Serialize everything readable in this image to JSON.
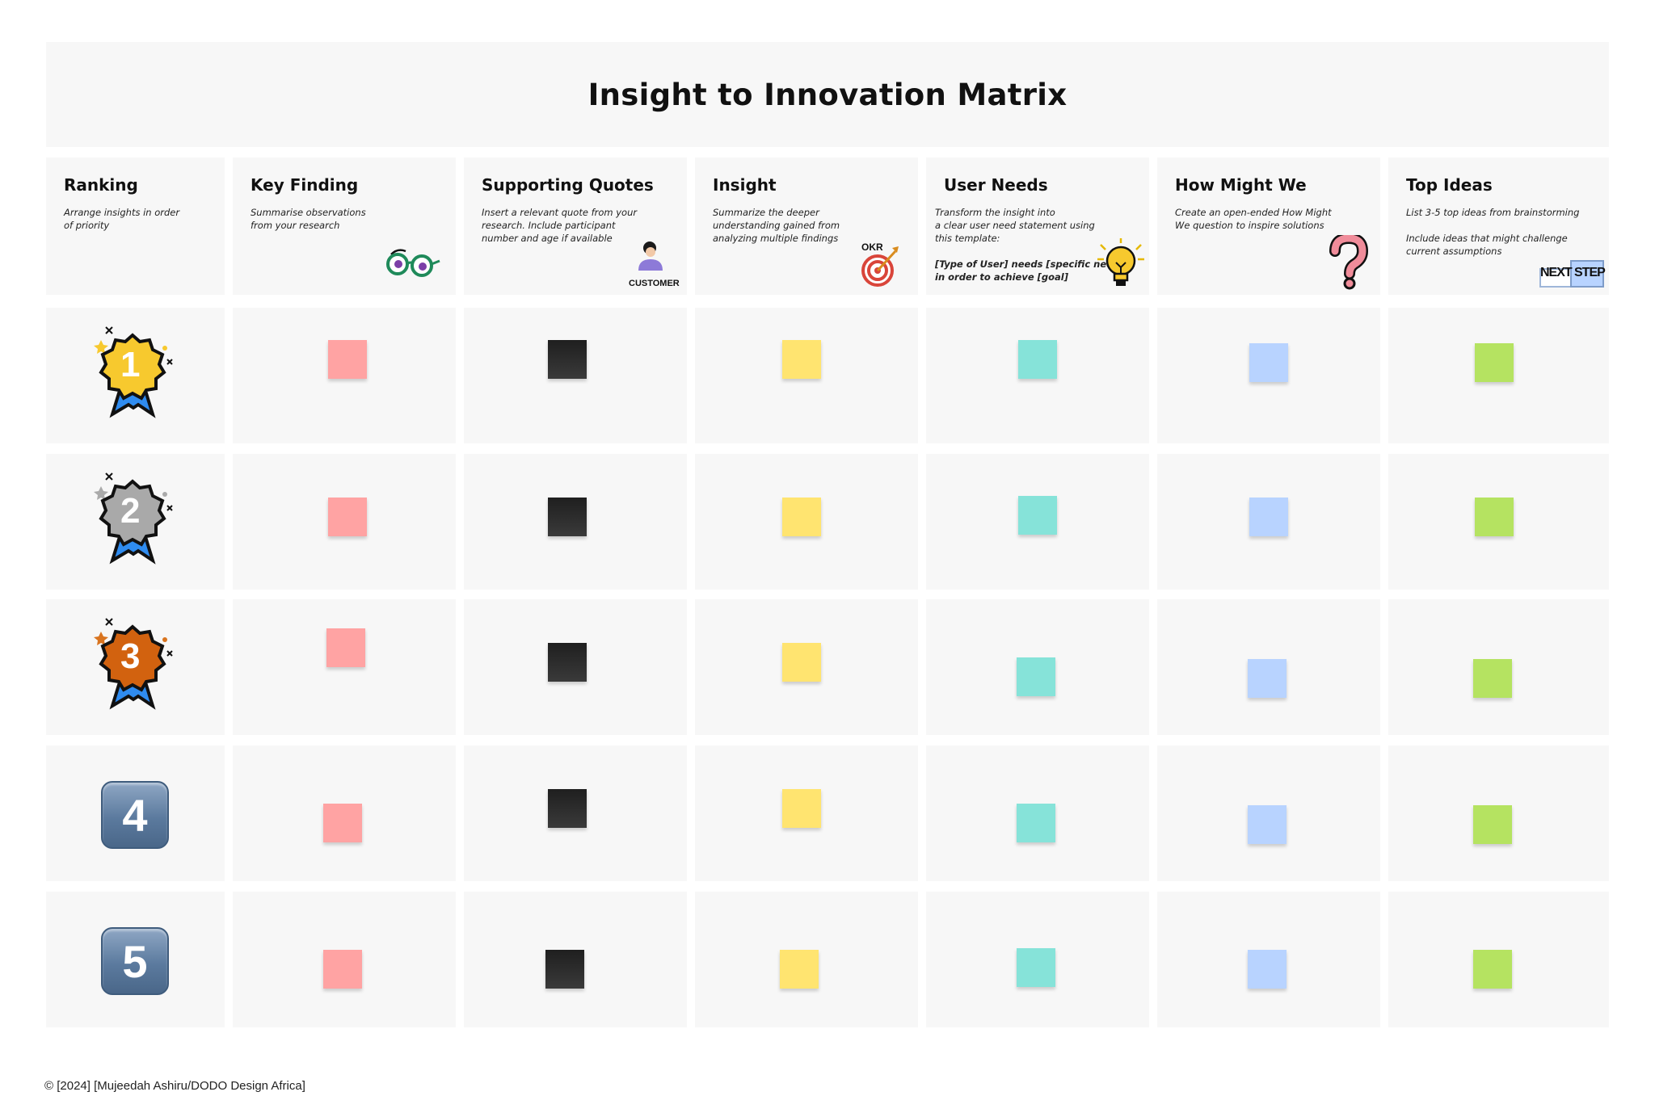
{
  "title": "Insight to Innovation Matrix",
  "columns": [
    {
      "name": "Ranking",
      "desc": "Arrange insights in order\nof priority"
    },
    {
      "name": "Key Finding",
      "desc": "Summarise observations\nfrom your research"
    },
    {
      "name": "Supporting Quotes",
      "desc": "Insert a relevant quote from your\nresearch. Include participant\nnumber and age if available",
      "sticker_label": "CUSTOMER"
    },
    {
      "name": "Insight",
      "desc": "Summarize the deeper\nunderstanding gained from\nanalyzing multiple findings",
      "sticker_label": "OKR"
    },
    {
      "name": "User Needs",
      "desc": "Transform the insight into\na clear user need statement using\nthis template:",
      "template": "[Type of User] needs [specific need]\nin order to achieve [goal]"
    },
    {
      "name": "How Might We",
      "desc": "Create an open-ended How Might\nWe question to inspire solutions"
    },
    {
      "name": "Top Ideas",
      "desc": "List 3-5 top ideas from brainstorming",
      "desc2": "Include ideas that might challenge\ncurrent assumptions",
      "sticker_label_1": "NEXT",
      "sticker_label_2": "STEP"
    }
  ],
  "ranks": [
    "1",
    "2",
    "3",
    "4",
    "5"
  ],
  "sticky_colors": [
    "#ffa3a3",
    "#1f1f1f",
    "#ffe470",
    "#86e3d9",
    "#b8d3ff",
    "#b5e361"
  ],
  "icons": [
    "medal-gold-icon",
    "medal-silver-icon",
    "medal-bronze-icon",
    "keycap-4-icon",
    "keycap-5-icon",
    "glasses-icon",
    "customer-icon",
    "okr-target-icon",
    "lightbulb-icon",
    "question-mark-icon",
    "next-step-icon"
  ],
  "footer": "© [2024] [Mujeedah Ashiru/DODO Design Africa]"
}
